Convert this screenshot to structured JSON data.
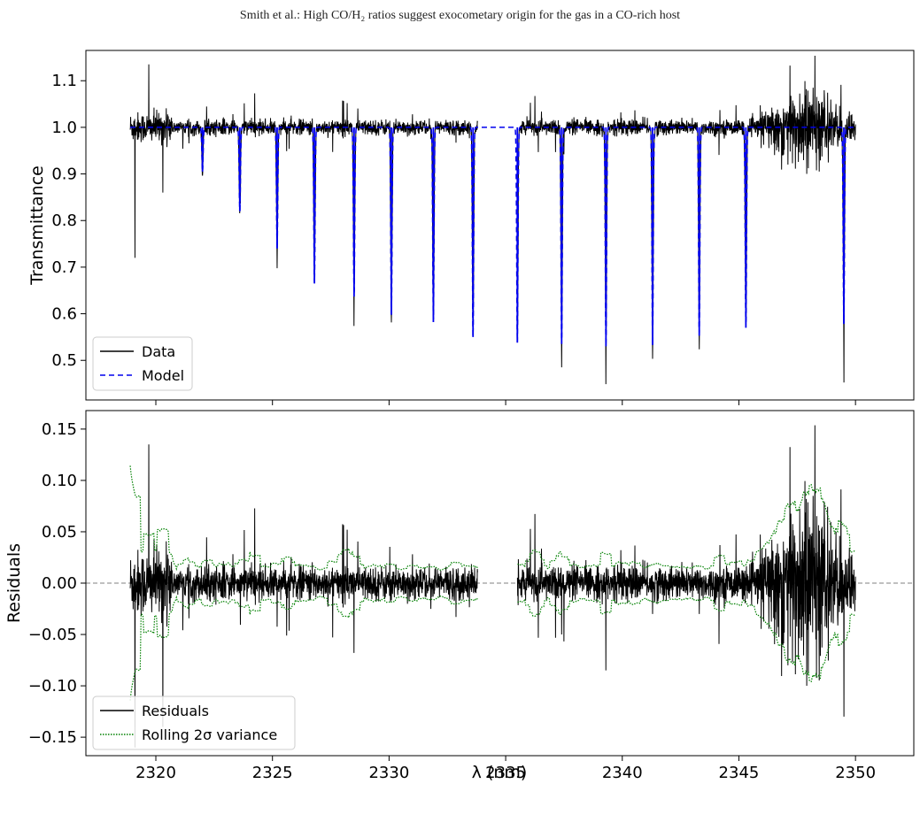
{
  "page": {
    "header": "Smith et al.: High CO/H₂ ratios suggest exocometary origin for the gas in a CO-rich host",
    "caption": ""
  },
  "chart_data": [
    {
      "type": "line",
      "panel": "top",
      "title": "",
      "xlabel": "",
      "ylabel": "Transmittance",
      "xlim": [
        2317,
        2352.5
      ],
      "ylim": [
        0.415,
        1.165
      ],
      "xticks": [
        2320,
        2325,
        2330,
        2335,
        2340,
        2345,
        2350
      ],
      "yticks": [
        0.5,
        0.6,
        0.7,
        0.8,
        0.9,
        1.0,
        1.1
      ],
      "ytick_labels": [
        "0.5",
        "0.6",
        "0.7",
        "0.8",
        "0.9",
        "1.0",
        "1.1"
      ],
      "legend": {
        "position": "lower-left",
        "entries": [
          "Data",
          "Model"
        ]
      },
      "series": [
        {
          "name": "Data",
          "style": "solid",
          "color": "#000000",
          "x_range": [
            2318.9,
            2350.0
          ],
          "gap": [
            2333.8,
            2335.5
          ]
        },
        {
          "name": "Model",
          "style": "dashed",
          "color": "#0000ee",
          "x_range": [
            2318.9,
            2350.0
          ],
          "baseline": 1.0
        }
      ],
      "absorption_lines": [
        {
          "x": 2322.0,
          "depth": 0.905
        },
        {
          "x": 2323.6,
          "depth": 0.82
        },
        {
          "x": 2325.2,
          "depth": 0.74
        },
        {
          "x": 2326.8,
          "depth": 0.665
        },
        {
          "x": 2328.5,
          "depth": 0.637
        },
        {
          "x": 2330.1,
          "depth": 0.598
        },
        {
          "x": 2331.9,
          "depth": 0.582
        },
        {
          "x": 2333.6,
          "depth": 0.55
        },
        {
          "x": 2335.5,
          "depth": 0.538
        },
        {
          "x": 2337.4,
          "depth": 0.535
        },
        {
          "x": 2339.3,
          "depth": 0.53
        },
        {
          "x": 2341.3,
          "depth": 0.533
        },
        {
          "x": 2343.3,
          "depth": 0.553
        },
        {
          "x": 2345.3,
          "depth": 0.57
        },
        {
          "x": 2349.5,
          "depth": 0.578
        }
      ]
    },
    {
      "type": "line",
      "panel": "bottom",
      "title": "",
      "xlabel": "λ (nm)",
      "ylabel": "Residuals",
      "xlim": [
        2317,
        2352.5
      ],
      "ylim": [
        -0.168,
        0.168
      ],
      "xticks": [
        2320,
        2325,
        2330,
        2335,
        2340,
        2345,
        2350
      ],
      "xtick_labels": [
        "2320",
        "2325",
        "2330",
        "2335",
        "2340",
        "2345",
        "2350"
      ],
      "yticks": [
        -0.15,
        -0.1,
        -0.05,
        0.0,
        0.05,
        0.1,
        0.15
      ],
      "ytick_labels": [
        "−0.15",
        "−0.10",
        "−0.05",
        "0.00",
        "0.05",
        "0.10",
        "0.15"
      ],
      "zero_line": true,
      "legend": {
        "position": "lower-left",
        "entries": [
          "Residuals",
          "Rolling 2σ variance"
        ]
      },
      "series": [
        {
          "name": "Residuals",
          "style": "solid",
          "color": "#000000"
        },
        {
          "name": "Rolling 2σ variance",
          "style": "dotted",
          "color": "#008000"
        }
      ]
    }
  ]
}
